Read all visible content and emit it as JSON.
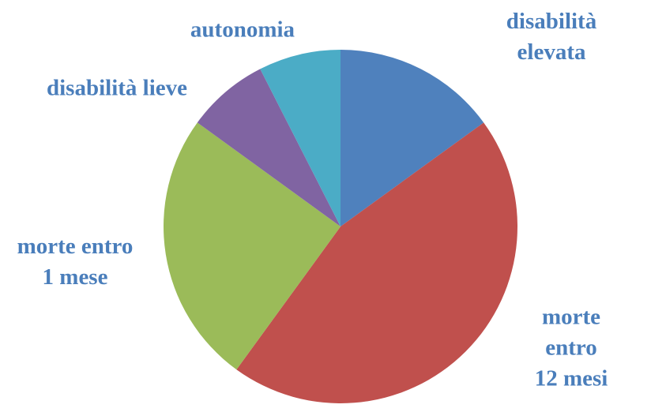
{
  "chart_data": {
    "type": "pie",
    "categories": [
      "disabilità elevata",
      "morte entro\n12 mesi",
      "morte entro\n1 mese",
      "disabilità lieve",
      "autonomia"
    ],
    "values": [
      15,
      45,
      25,
      7.5,
      7.5
    ],
    "colors": [
      "#4f81bd",
      "#c0504d",
      "#9bbb59",
      "#8064a2",
      "#4bacc6"
    ]
  }
}
